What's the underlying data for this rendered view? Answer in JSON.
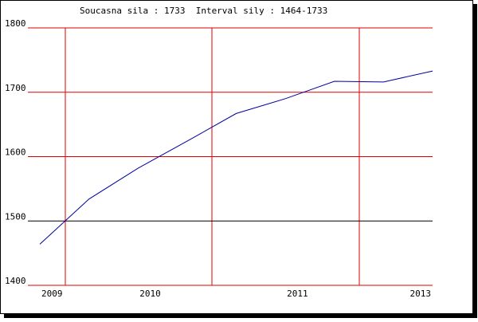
{
  "chart_data": {
    "type": "line",
    "title": "Soucasna sila : 1733  Interval sily : 1464-1733",
    "categories": [
      "2009",
      null,
      "2010",
      null,
      null,
      "2011",
      null,
      null,
      "2013"
    ],
    "series": [
      {
        "color": "#0000a0",
        "values": [
          1464,
          1534,
          1582,
          1624,
          1667,
          1690,
          1717,
          1716,
          1733
        ]
      }
    ],
    "ylim": [
      1400,
      1800
    ],
    "yticks": [
      1400,
      1500,
      1600,
      1700,
      1800
    ],
    "grid": true,
    "grid_color": "#e00000",
    "reference_line": 1500,
    "reference_color": "#000000"
  }
}
